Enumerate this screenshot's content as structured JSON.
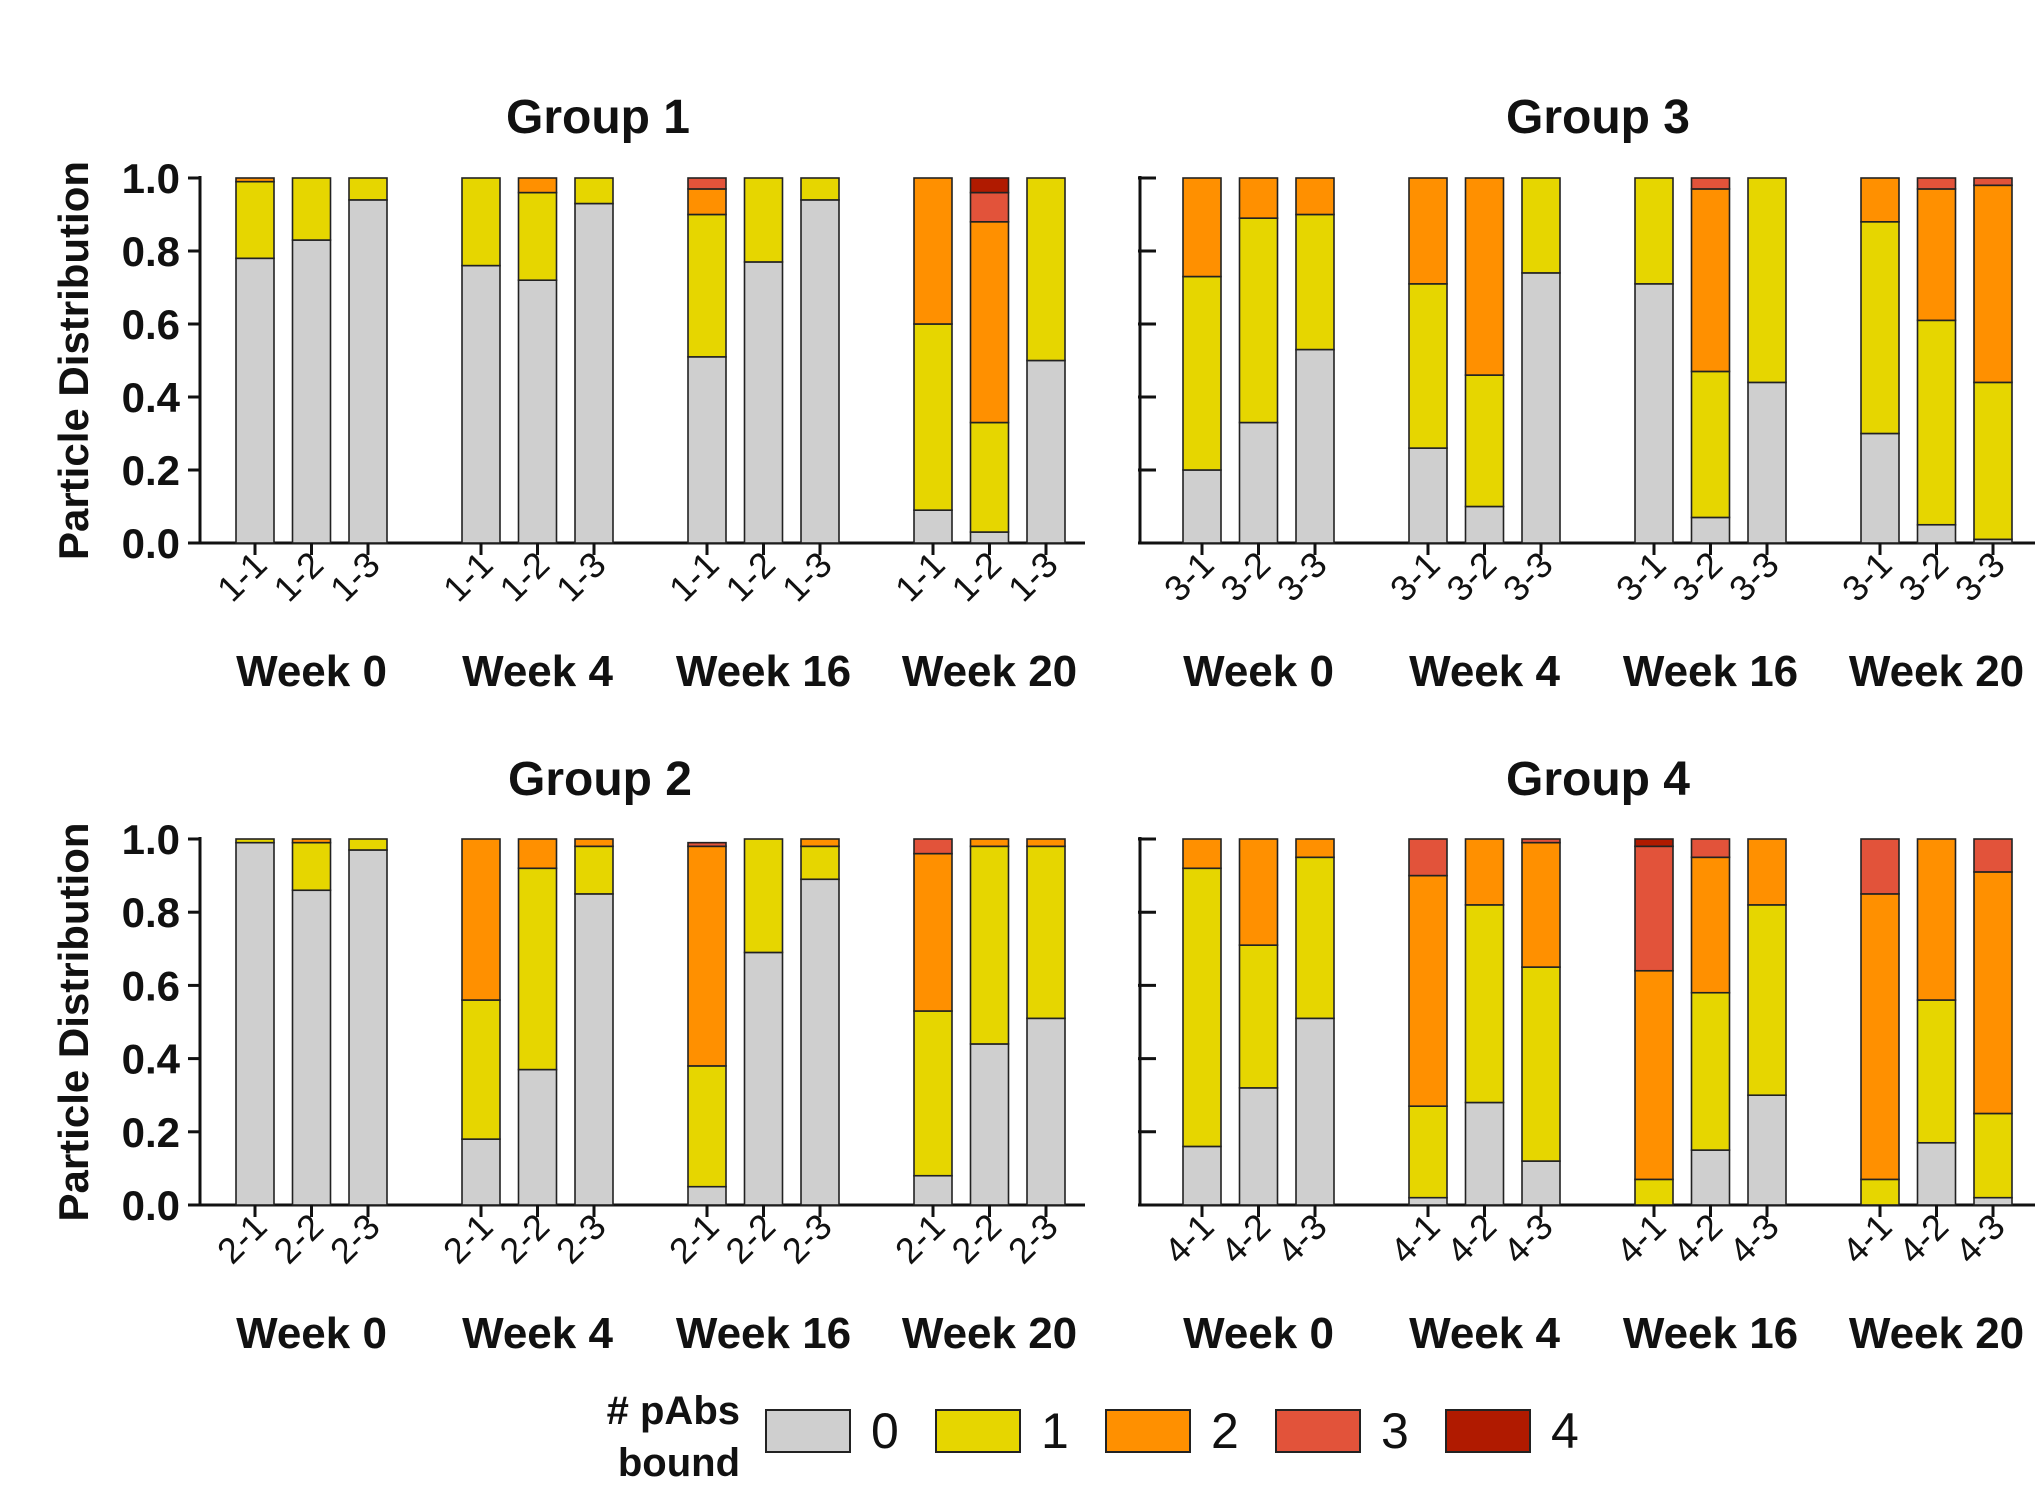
{
  "colors": {
    "axis": "#111111",
    "bar_stroke": "#222222",
    "segments": [
      "#cfcfcf",
      "#e6d600",
      "#ff9000",
      "#e2533a",
      "#b01a00"
    ]
  },
  "legend": {
    "title": "# pAbs bound",
    "items": [
      {
        "label": "0",
        "color": "#cfcfcf"
      },
      {
        "label": "1",
        "color": "#e6d600"
      },
      {
        "label": "2",
        "color": "#ff9000"
      },
      {
        "label": "3",
        "color": "#e2533a"
      },
      {
        "label": "4",
        "color": "#b01a00"
      }
    ]
  },
  "chart_data": [
    {
      "type": "bar",
      "stacked": true,
      "title": "Group 1",
      "ylabel": "Particle Distribution",
      "ylim": [
        0,
        1
      ],
      "yticks": [
        "0.0",
        "0.2",
        "0.4",
        "0.6",
        "0.8",
        "1.0"
      ],
      "series_names": [
        "0",
        "1",
        "2",
        "3",
        "4"
      ],
      "groups": [
        {
          "label": "Week 0",
          "bars": [
            {
              "category": "1-1",
              "values": [
                0.78,
                0.21,
                0.01,
                0,
                0
              ]
            },
            {
              "category": "1-2",
              "values": [
                0.83,
                0.17,
                0,
                0,
                0
              ]
            },
            {
              "category": "1-3",
              "values": [
                0.94,
                0.06,
                0,
                0,
                0
              ]
            }
          ]
        },
        {
          "label": "Week 4",
          "bars": [
            {
              "category": "1-1",
              "values": [
                0.76,
                0.24,
                0,
                0,
                0
              ]
            },
            {
              "category": "1-2",
              "values": [
                0.72,
                0.24,
                0.04,
                0,
                0
              ]
            },
            {
              "category": "1-3",
              "values": [
                0.93,
                0.07,
                0,
                0,
                0
              ]
            }
          ]
        },
        {
          "label": "Week 16",
          "bars": [
            {
              "category": "1-1",
              "values": [
                0.51,
                0.39,
                0.07,
                0.03,
                0
              ]
            },
            {
              "category": "1-2",
              "values": [
                0.77,
                0.23,
                0,
                0,
                0
              ]
            },
            {
              "category": "1-3",
              "values": [
                0.94,
                0.06,
                0,
                0,
                0
              ]
            }
          ]
        },
        {
          "label": "Week 20",
          "bars": [
            {
              "category": "1-1",
              "values": [
                0.09,
                0.51,
                0.4,
                0,
                0
              ]
            },
            {
              "category": "1-2",
              "values": [
                0.03,
                0.3,
                0.55,
                0.08,
                0.04
              ]
            },
            {
              "category": "1-3",
              "values": [
                0.5,
                0.5,
                0,
                0,
                0
              ]
            }
          ]
        }
      ]
    },
    {
      "type": "bar",
      "stacked": true,
      "title": "Group 3",
      "ylabel": "",
      "ylim": [
        0,
        1
      ],
      "yticks": [],
      "series_names": [
        "0",
        "1",
        "2",
        "3",
        "4"
      ],
      "groups": [
        {
          "label": "Week 0",
          "bars": [
            {
              "category": "3-1",
              "values": [
                0.2,
                0.53,
                0.27,
                0,
                0
              ]
            },
            {
              "category": "3-2",
              "values": [
                0.33,
                0.56,
                0.11,
                0,
                0
              ]
            },
            {
              "category": "3-3",
              "values": [
                0.53,
                0.37,
                0.1,
                0,
                0
              ]
            }
          ]
        },
        {
          "label": "Week 4",
          "bars": [
            {
              "category": "3-1",
              "values": [
                0.26,
                0.45,
                0.29,
                0,
                0
              ]
            },
            {
              "category": "3-2",
              "values": [
                0.1,
                0.36,
                0.54,
                0,
                0
              ]
            },
            {
              "category": "3-3",
              "values": [
                0.74,
                0.26,
                0,
                0,
                0
              ]
            }
          ]
        },
        {
          "label": "Week 16",
          "bars": [
            {
              "category": "3-1",
              "values": [
                0.71,
                0.29,
                0,
                0,
                0
              ]
            },
            {
              "category": "3-2",
              "values": [
                0.07,
                0.4,
                0.5,
                0.03,
                0
              ]
            },
            {
              "category": "3-3",
              "values": [
                0.44,
                0.56,
                0,
                0,
                0
              ]
            }
          ]
        },
        {
          "label": "Week 20",
          "bars": [
            {
              "category": "3-1",
              "values": [
                0.3,
                0.58,
                0.12,
                0,
                0
              ]
            },
            {
              "category": "3-2",
              "values": [
                0.05,
                0.56,
                0.36,
                0.03,
                0
              ]
            },
            {
              "category": "3-3",
              "values": [
                0.01,
                0.43,
                0.54,
                0.02,
                0
              ]
            }
          ]
        }
      ]
    },
    {
      "type": "bar",
      "stacked": true,
      "title": "Group 2",
      "ylabel": "Particle Distribution",
      "ylim": [
        0,
        1
      ],
      "yticks": [
        "0.0",
        "0.2",
        "0.4",
        "0.6",
        "0.8",
        "1.0"
      ],
      "series_names": [
        "0",
        "1",
        "2",
        "3",
        "4"
      ],
      "groups": [
        {
          "label": "Week 0",
          "bars": [
            {
              "category": "2-1",
              "values": [
                0.99,
                0.01,
                0,
                0,
                0
              ]
            },
            {
              "category": "2-2",
              "values": [
                0.86,
                0.13,
                0.01,
                0,
                0
              ]
            },
            {
              "category": "2-3",
              "values": [
                0.97,
                0.03,
                0,
                0,
                0
              ]
            }
          ]
        },
        {
          "label": "Week 4",
          "bars": [
            {
              "category": "2-1",
              "values": [
                0.18,
                0.38,
                0.44,
                0,
                0
              ]
            },
            {
              "category": "2-2",
              "values": [
                0.37,
                0.55,
                0.08,
                0,
                0
              ]
            },
            {
              "category": "2-3",
              "values": [
                0.85,
                0.13,
                0.02,
                0,
                0
              ]
            }
          ]
        },
        {
          "label": "Week 16",
          "bars": [
            {
              "category": "2-1",
              "values": [
                0.05,
                0.33,
                0.6,
                0.01,
                0
              ]
            },
            {
              "category": "2-2",
              "values": [
                0.69,
                0.31,
                0,
                0,
                0
              ]
            },
            {
              "category": "2-3",
              "values": [
                0.89,
                0.09,
                0.02,
                0,
                0
              ]
            }
          ]
        },
        {
          "label": "Week 20",
          "bars": [
            {
              "category": "2-1",
              "values": [
                0.08,
                0.45,
                0.43,
                0.04,
                0
              ]
            },
            {
              "category": "2-2",
              "values": [
                0.44,
                0.54,
                0.02,
                0,
                0
              ]
            },
            {
              "category": "2-3",
              "values": [
                0.51,
                0.47,
                0.02,
                0,
                0
              ]
            }
          ]
        }
      ]
    },
    {
      "type": "bar",
      "stacked": true,
      "title": "Group 4",
      "ylabel": "",
      "ylim": [
        0,
        1
      ],
      "yticks": [],
      "series_names": [
        "0",
        "1",
        "2",
        "3",
        "4"
      ],
      "groups": [
        {
          "label": "Week 0",
          "bars": [
            {
              "category": "4-1",
              "values": [
                0.16,
                0.76,
                0.08,
                0,
                0
              ]
            },
            {
              "category": "4-2",
              "values": [
                0.32,
                0.39,
                0.29,
                0,
                0
              ]
            },
            {
              "category": "4-3",
              "values": [
                0.51,
                0.44,
                0.05,
                0,
                0
              ]
            }
          ]
        },
        {
          "label": "Week 4",
          "bars": [
            {
              "category": "4-1",
              "values": [
                0.02,
                0.25,
                0.63,
                0.1,
                0
              ]
            },
            {
              "category": "4-2",
              "values": [
                0.28,
                0.54,
                0.18,
                0,
                0
              ]
            },
            {
              "category": "4-3",
              "values": [
                0.12,
                0.53,
                0.34,
                0.01,
                0
              ]
            }
          ]
        },
        {
          "label": "Week 16",
          "bars": [
            {
              "category": "4-1",
              "values": [
                0,
                0.07,
                0.57,
                0.34,
                0.02
              ]
            },
            {
              "category": "4-2",
              "values": [
                0.15,
                0.43,
                0.37,
                0.05,
                0
              ]
            },
            {
              "category": "4-3",
              "values": [
                0.3,
                0.52,
                0.18,
                0,
                0
              ]
            }
          ]
        },
        {
          "label": "Week 20",
          "bars": [
            {
              "category": "4-1",
              "values": [
                0,
                0.07,
                0.78,
                0.15,
                0
              ]
            },
            {
              "category": "4-2",
              "values": [
                0.17,
                0.39,
                0.44,
                0,
                0
              ]
            },
            {
              "category": "4-3",
              "values": [
                0.02,
                0.23,
                0.66,
                0.09,
                0
              ]
            }
          ]
        }
      ]
    }
  ]
}
